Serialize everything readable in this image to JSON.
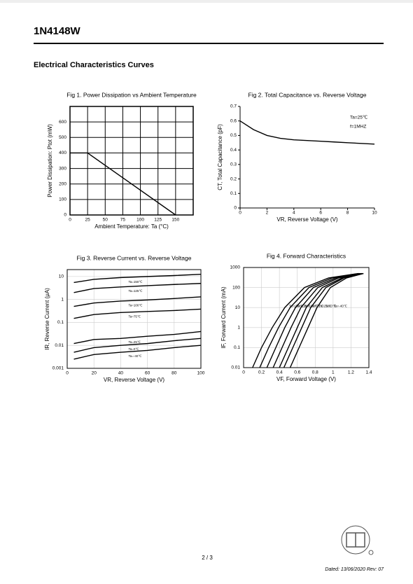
{
  "header": {
    "title": "1N4148W",
    "section_title": "Electrical Characteristics Curves"
  },
  "chart_data": [
    {
      "type": "line",
      "title": "Fig 1. Power Dissipation vs Ambient Temperature",
      "x_label": "Ambient Temperature: Ta (°C)",
      "y_label": "Power Dissipation: Ptot (mW)",
      "xlim": [
        0,
        175
      ],
      "xticks": [
        0,
        25,
        50,
        75,
        100,
        125,
        150
      ],
      "ylim": [
        0,
        700
      ],
      "yticks": [
        0,
        100,
        200,
        300,
        400,
        500,
        600
      ],
      "grid": true,
      "grid_color": "#000000",
      "color": "#000000",
      "series": [
        {
          "x": [
            0,
            25,
            150
          ],
          "values": [
            400,
            400,
            0
          ]
        }
      ]
    },
    {
      "type": "line",
      "title": "Fig 2. Total Capacitance vs. Reverse Voltage",
      "x_label": "VR, Reverse Voltage (V)",
      "y_label": "CT, Total Capacitance (pF)",
      "xlim": [
        0,
        10
      ],
      "xticks": [
        0,
        2,
        4,
        6,
        8,
        10
      ],
      "ylim": [
        0,
        0.7
      ],
      "yticks": [
        0,
        0.1,
        0.2,
        0.3,
        0.4,
        0.5,
        0.6,
        0.7
      ],
      "grid": false,
      "color": "#000000",
      "annotations": [
        "Ta=25℃",
        "f=1MHZ"
      ],
      "series": [
        {
          "x": [
            0,
            1,
            2,
            3,
            4,
            5,
            6,
            7,
            8,
            9,
            10
          ],
          "values": [
            0.6,
            0.54,
            0.5,
            0.48,
            0.47,
            0.465,
            0.46,
            0.455,
            0.45,
            0.445,
            0.44
          ]
        }
      ]
    },
    {
      "type": "line",
      "title": "Fig 3. Reverse Current vs. Reverse Voltage",
      "x_label": "VR, Reverse Voltage (V)",
      "y_label": "IR, Reverse Current (μA)",
      "xlim": [
        0,
        100
      ],
      "xticks": [
        0,
        20,
        40,
        60,
        80,
        100
      ],
      "ylim": [
        0.001,
        20
      ],
      "yticks": [
        0.001,
        0.01,
        0.1,
        1,
        10
      ],
      "log_y": true,
      "grid": true,
      "grid_color": "#cccccc",
      "color": "#000000",
      "series": [
        {
          "name": "Ta=150℃",
          "x": [
            5,
            20,
            40,
            60,
            80,
            100
          ],
          "values": [
            5.5,
            7.5,
            9,
            10,
            11,
            12.5
          ]
        },
        {
          "name": "Ta=125℃",
          "x": [
            5,
            20,
            40,
            60,
            80,
            100
          ],
          "values": [
            2,
            3,
            3.5,
            4,
            4.5,
            5
          ]
        },
        {
          "name": "Ta=100℃",
          "x": [
            5,
            20,
            40,
            60,
            80,
            100
          ],
          "values": [
            0.5,
            0.7,
            0.85,
            0.95,
            1.1,
            1.3
          ]
        },
        {
          "name": "Ta=75℃",
          "x": [
            5,
            20,
            40,
            60,
            80,
            100
          ],
          "values": [
            0.15,
            0.22,
            0.27,
            0.3,
            0.33,
            0.38
          ]
        },
        {
          "name": "Ta=25℃",
          "x": [
            5,
            20,
            40,
            60,
            80,
            100
          ],
          "values": [
            0.012,
            0.018,
            0.02,
            0.025,
            0.03,
            0.04
          ]
        },
        {
          "name": "Ta=0℃",
          "x": [
            5,
            20,
            40,
            60,
            80,
            100
          ],
          "values": [
            0.005,
            0.008,
            0.01,
            0.012,
            0.016,
            0.02
          ]
        },
        {
          "name": "Ta=-40℃",
          "x": [
            5,
            20,
            40,
            60,
            80,
            100
          ],
          "values": [
            0.0025,
            0.004,
            0.005,
            0.006,
            0.008,
            0.01
          ]
        }
      ]
    },
    {
      "type": "line",
      "title": "Fig 4. Forward Characteristics",
      "x_label": "VF, Forward Voltage (V)",
      "y_label": "IF, Forward Current (mA)",
      "xlim": [
        0,
        1.4
      ],
      "xticks": [
        0,
        0.2,
        0.4,
        0.6,
        0.8,
        1,
        1.2,
        1.4
      ],
      "ylim": [
        0.01,
        1000
      ],
      "yticks": [
        0.01,
        0.1,
        1,
        10,
        100,
        1000
      ],
      "log_y": true,
      "grid": true,
      "grid_color": "#cccccc",
      "color": "#000000",
      "series": [
        {
          "name": "Ta=150℃",
          "x": [
            0.1,
            0.2,
            0.32,
            0.46,
            0.68,
            0.95,
            1.28
          ],
          "values": [
            0.01,
            0.1,
            1,
            10,
            100,
            300,
            500
          ]
        },
        {
          "name": "Ta=125℃",
          "x": [
            0.18,
            0.28,
            0.39,
            0.52,
            0.73,
            0.99,
            1.29
          ],
          "values": [
            0.01,
            0.1,
            1,
            10,
            100,
            300,
            500
          ]
        },
        {
          "name": "Ta=100℃",
          "x": [
            0.26,
            0.36,
            0.46,
            0.58,
            0.78,
            1.03,
            1.3
          ],
          "values": [
            0.01,
            0.1,
            1,
            10,
            100,
            300,
            500
          ]
        },
        {
          "name": "Ta=75℃",
          "x": [
            0.33,
            0.43,
            0.53,
            0.64,
            0.83,
            1.06,
            1.31
          ],
          "values": [
            0.01,
            0.1,
            1,
            10,
            100,
            300,
            500
          ]
        },
        {
          "name": "Ta=25℃",
          "x": [
            0.4,
            0.5,
            0.6,
            0.7,
            0.88,
            1.1,
            1.32
          ],
          "values": [
            0.01,
            0.1,
            1,
            10,
            100,
            300,
            500
          ]
        },
        {
          "name": "Ta=0℃",
          "x": [
            0.45,
            0.55,
            0.65,
            0.75,
            0.92,
            1.12,
            1.33
          ],
          "values": [
            0.01,
            0.1,
            1,
            10,
            100,
            300,
            500
          ]
        },
        {
          "name": "Ta=-40℃",
          "x": [
            0.52,
            0.62,
            0.72,
            0.82,
            0.97,
            1.15,
            1.34
          ],
          "values": [
            0.01,
            0.1,
            1,
            10,
            100,
            300,
            500
          ]
        }
      ]
    }
  ],
  "footer": {
    "page": "2 / 3",
    "dated": "Dated: 13/06/2020   Rev: 07"
  }
}
